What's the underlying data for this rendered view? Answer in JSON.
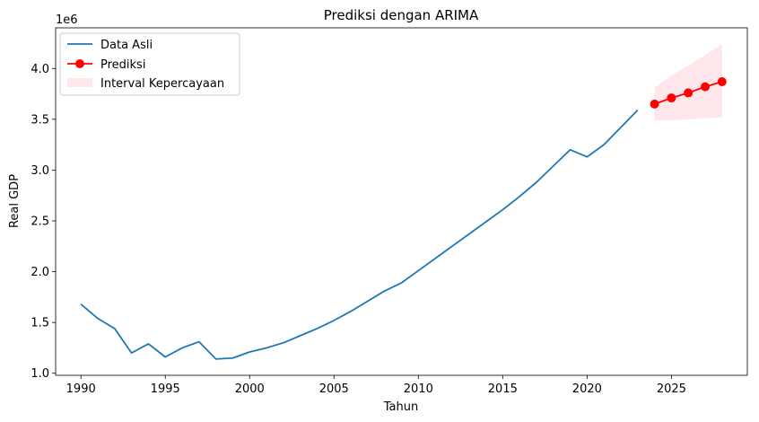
{
  "chart_data": {
    "type": "line",
    "title": "Prediksi dengan ARIMA",
    "xlabel": "Tahun",
    "ylabel": "Real GDP",
    "y_offset_label": "1e6",
    "xlim": [
      1988.5,
      2029.5
    ],
    "ylim": [
      0.98,
      4.4
    ],
    "x_ticks": [
      1990,
      1995,
      2000,
      2005,
      2010,
      2015,
      2020,
      2025
    ],
    "y_ticks": [
      1.0,
      1.5,
      2.0,
      2.5,
      3.0,
      3.5,
      4.0
    ],
    "y_tick_labels": [
      "1.0",
      "1.5",
      "2.0",
      "2.5",
      "3.0",
      "3.5",
      "4.0"
    ],
    "grid": false,
    "legend_position": "top-left",
    "series": [
      {
        "name": "Data Asli",
        "color": "#1f77b4",
        "x": [
          1990,
          1991,
          1992,
          1993,
          1994,
          1995,
          1996,
          1997,
          1998,
          1999,
          2000,
          2001,
          2002,
          2003,
          2004,
          2005,
          2006,
          2007,
          2008,
          2009,
          2010,
          2011,
          2012,
          2013,
          2014,
          2015,
          2016,
          2017,
          2018,
          2019,
          2020,
          2021,
          2022,
          2023
        ],
        "values": [
          1.68,
          1.54,
          1.44,
          1.2,
          1.29,
          1.16,
          1.25,
          1.31,
          1.14,
          1.15,
          1.21,
          1.25,
          1.3,
          1.37,
          1.44,
          1.52,
          1.61,
          1.71,
          1.81,
          1.89,
          2.01,
          2.13,
          2.25,
          2.37,
          2.49,
          2.61,
          2.74,
          2.88,
          3.04,
          3.2,
          3.13,
          3.25,
          3.42,
          3.59
        ]
      },
      {
        "name": "Prediksi",
        "color": "#ff0000",
        "marker": "circle",
        "x": [
          2024,
          2025,
          2026,
          2027,
          2028
        ],
        "values": [
          3.65,
          3.71,
          3.76,
          3.82,
          3.87
        ]
      }
    ],
    "confidence_interval": {
      "name": "Interval Kepercayaan",
      "color": "#ffc0cb",
      "x": [
        2024,
        2025,
        2026,
        2027,
        2028
      ],
      "lower": [
        3.49,
        3.49,
        3.5,
        3.51,
        3.52
      ],
      "upper": [
        3.81,
        3.93,
        4.03,
        4.13,
        4.24
      ]
    }
  }
}
